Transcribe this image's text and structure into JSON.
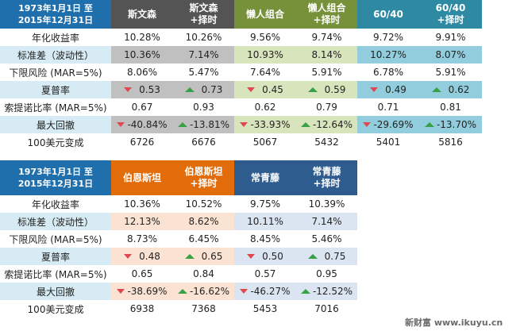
{
  "table1": {
    "date_header": [
      "1973年1月1日 至",
      "2015年12月31日"
    ],
    "columns": [
      {
        "name": "斯文森",
        "line2": "",
        "header_color": "#545454",
        "shade_color": "#c0c0c0"
      },
      {
        "name": "斯文森",
        "line2": "+择时",
        "header_color": "#545454",
        "shade_color": "#c0c0c0"
      },
      {
        "name": "懒人组合",
        "line2": "",
        "header_color": "#76913a",
        "shade_color": "#d8e4bc"
      },
      {
        "name": "懒人组合",
        "line2": "+择时",
        "header_color": "#76913a",
        "shade_color": "#d8e4bc"
      },
      {
        "name": "60/40",
        "line2": "",
        "header_color": "#2e8aa3",
        "shade_color": "#92cddd"
      },
      {
        "name": "60/40",
        "line2": "+择时",
        "header_color": "#2e8aa3",
        "shade_color": "#92cddd"
      }
    ],
    "rows": [
      {
        "label": "年化收益率",
        "values": [
          "10.28%",
          "10.26%",
          "9.56%",
          "9.74%",
          "9.72%",
          "9.91%"
        ]
      },
      {
        "label": "标准差（波动性）",
        "values": [
          "10.36%",
          "7.14%",
          "10.93%",
          "8.14%",
          "10.27%",
          "8.07%"
        ]
      },
      {
        "label": "下限风险 (MAR=5%)",
        "values": [
          "8.06%",
          "5.47%",
          "7.64%",
          "5.91%",
          "6.78%",
          "5.91%"
        ]
      },
      {
        "label": "夏普率",
        "values": [
          "0.53",
          "0.73",
          "0.45",
          "0.59",
          "0.49",
          "0.62"
        ],
        "indicators": [
          "down",
          "up",
          "down",
          "up",
          "down",
          "up"
        ]
      },
      {
        "label": "索提诺比率 (MAR=5%)",
        "values": [
          "0.67",
          "0.93",
          "0.62",
          "0.79",
          "0.71",
          "0.81"
        ]
      },
      {
        "label": "最大回撤",
        "values": [
          "-40.84%",
          "-13.81%",
          "-33.93%",
          "-12.64%",
          "-29.69%",
          "-13.70%"
        ],
        "indicators": [
          "down",
          "up",
          "down",
          "up",
          "down",
          "up"
        ]
      },
      {
        "label": "100美元变成",
        "values": [
          "6726",
          "6676",
          "5067",
          "5432",
          "5401",
          "5816"
        ]
      }
    ]
  },
  "table2": {
    "date_header": [
      "1973年1月1日 至",
      "2015年12月31日"
    ],
    "columns": [
      {
        "name": "伯恩斯坦",
        "line2": "",
        "header_color": "#e36c0a",
        "shade_color": "#fbe3d3"
      },
      {
        "name": "伯恩斯坦",
        "line2": "+择时",
        "header_color": "#e36c0a",
        "shade_color": "#fbe3d3"
      },
      {
        "name": "常青藤",
        "line2": "",
        "header_color": "#2f5c8f",
        "shade_color": "#dbe5f1"
      },
      {
        "name": "常青藤",
        "line2": "+择时",
        "header_color": "#2f5c8f",
        "shade_color": "#dbe5f1"
      }
    ],
    "rows": [
      {
        "label": "年化收益率",
        "values": [
          "10.36%",
          "10.52%",
          "9.75%",
          "10.39%"
        ]
      },
      {
        "label": "标准差（波动性）",
        "values": [
          "12.13%",
          "8.62%",
          "10.11%",
          "7.14%"
        ]
      },
      {
        "label": "下限风险 (MAR=5%)",
        "values": [
          "8.73%",
          "6.45%",
          "8.45%",
          "5.46%"
        ]
      },
      {
        "label": "夏普率",
        "values": [
          "0.48",
          "0.65",
          "0.50",
          "0.75"
        ],
        "indicators": [
          "down",
          "up",
          "down",
          "up"
        ]
      },
      {
        "label": "索提诺比率 (MAR=5%)",
        "values": [
          "0.65",
          "0.84",
          "0.57",
          "0.95"
        ]
      },
      {
        "label": "最大回撤",
        "values": [
          "-38.69%",
          "-16.62%",
          "-46.27%",
          "-12.52%"
        ],
        "indicators": [
          "down",
          "up",
          "down",
          "up"
        ]
      },
      {
        "label": "100美元变成",
        "values": [
          "6938",
          "7368",
          "5453",
          "7016"
        ]
      }
    ]
  },
  "watermark": "新财富 www.ikuyu.cn",
  "colors": {
    "date_header": "#1f6fad",
    "label_shade": "#d6ebf3",
    "indicator_down": "#e0484f",
    "indicator_up": "#3aa048"
  }
}
